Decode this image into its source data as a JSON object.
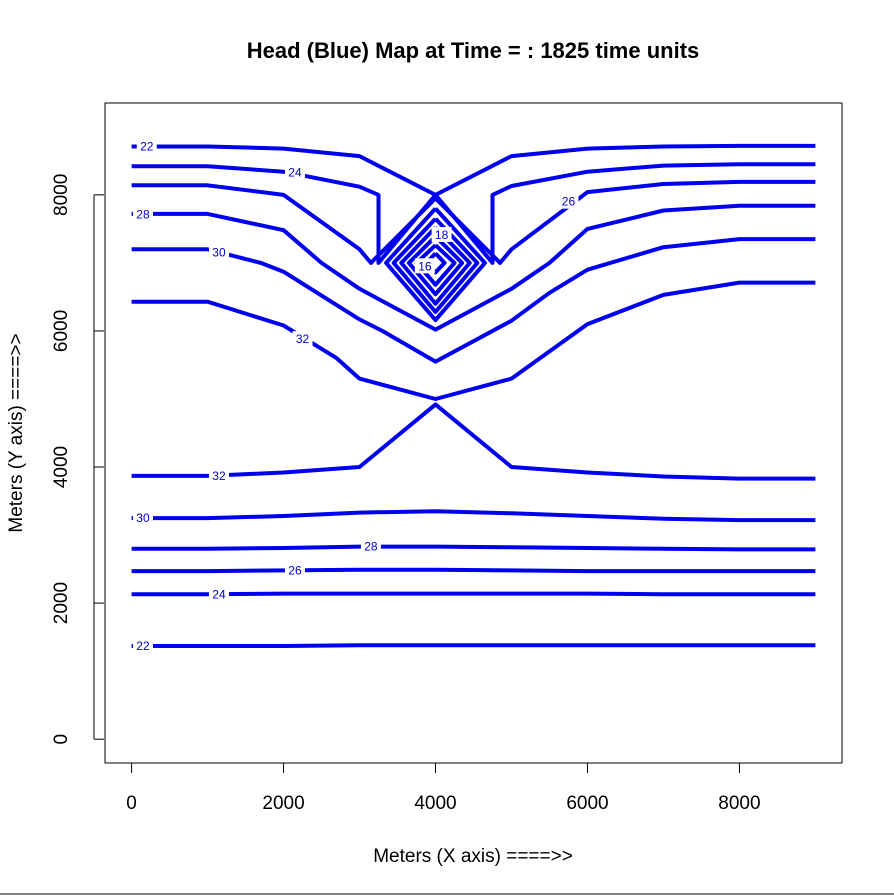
{
  "chart_data": {
    "type": "contour",
    "title": "Head (Blue) Map at Time = : 1825  time units",
    "xlabel": "Meters (X axis) ====>>",
    "ylabel": "Meters (Y axis) ====>>",
    "xlim": [
      -350,
      9350
    ],
    "ylim": [
      -350,
      9350
    ],
    "xticks": [
      0,
      2000,
      4000,
      6000,
      8000
    ],
    "yticks": [
      0,
      2000,
      4000,
      6000,
      8000
    ],
    "grid": false,
    "color": "#0000ee",
    "contours": [
      {
        "level": 22,
        "label": "22",
        "label_at": [
          200,
          8710
        ],
        "points": [
          [
            0,
            8710
          ],
          [
            1000,
            8710
          ],
          [
            2000,
            8680
          ],
          [
            3000,
            8570
          ],
          [
            4000,
            8000
          ],
          [
            5000,
            8570
          ],
          [
            6000,
            8680
          ],
          [
            7000,
            8710
          ],
          [
            8000,
            8720
          ],
          [
            9000,
            8720
          ]
        ]
      },
      {
        "level": 24,
        "label": "24",
        "label_at": [
          2150,
          8330
        ],
        "points": [
          [
            0,
            8420
          ],
          [
            1000,
            8420
          ],
          [
            2000,
            8340
          ],
          [
            3000,
            8120
          ],
          [
            3250,
            8000
          ],
          [
            3250,
            7000
          ],
          [
            4000,
            8000
          ],
          [
            4750,
            7000
          ],
          [
            4750,
            8000
          ],
          [
            5000,
            8130
          ],
          [
            6000,
            8340
          ],
          [
            7000,
            8430
          ],
          [
            8000,
            8450
          ],
          [
            9000,
            8450
          ]
        ]
      },
      {
        "level": 26,
        "label": "26",
        "label_at": [
          5750,
          7900
        ],
        "points": [
          [
            0,
            8140
          ],
          [
            1000,
            8140
          ],
          [
            2000,
            8000
          ],
          [
            3000,
            7200
          ],
          [
            3150,
            7000
          ],
          [
            4000,
            7950
          ],
          [
            4850,
            7000
          ],
          [
            5000,
            7200
          ],
          [
            6000,
            8040
          ],
          [
            7000,
            8160
          ],
          [
            8000,
            8190
          ],
          [
            9000,
            8190
          ]
        ]
      },
      {
        "level": 28,
        "label": "28",
        "label_at": [
          150,
          7710
        ],
        "points": [
          [
            0,
            7720
          ],
          [
            1000,
            7720
          ],
          [
            2000,
            7480
          ],
          [
            2500,
            7000
          ],
          [
            3000,
            6620
          ],
          [
            4000,
            6020
          ],
          [
            5000,
            6620
          ],
          [
            5500,
            7000
          ],
          [
            6000,
            7500
          ],
          [
            7000,
            7770
          ],
          [
            8000,
            7840
          ],
          [
            9000,
            7840
          ]
        ]
      },
      {
        "level": 30,
        "label": "30",
        "label_at": [
          1150,
          7150
        ],
        "points": [
          [
            0,
            7200
          ],
          [
            1000,
            7200
          ],
          [
            1700,
            7000
          ],
          [
            2000,
            6870
          ],
          [
            3000,
            6170
          ],
          [
            3300,
            6000
          ],
          [
            4000,
            5550
          ],
          [
            5000,
            6150
          ],
          [
            5500,
            6560
          ],
          [
            6000,
            6900
          ],
          [
            7000,
            7230
          ],
          [
            8000,
            7350
          ],
          [
            9000,
            7350
          ]
        ]
      },
      {
        "level": 32,
        "label": "32",
        "label_at": [
          2250,
          5880
        ],
        "points": [
          [
            0,
            6430
          ],
          [
            1000,
            6430
          ],
          [
            2000,
            6080
          ],
          [
            2700,
            5600
          ],
          [
            3000,
            5300
          ],
          [
            4000,
            5000
          ],
          [
            5000,
            5300
          ],
          [
            5500,
            5700
          ],
          [
            6000,
            6100
          ],
          [
            7000,
            6530
          ],
          [
            8000,
            6710
          ],
          [
            9000,
            6710
          ]
        ]
      },
      {
        "level": 32,
        "label": "32",
        "label_at": [
          1150,
          3870
        ],
        "points": [
          [
            0,
            3870
          ],
          [
            1000,
            3870
          ],
          [
            2000,
            3920
          ],
          [
            3000,
            4000
          ],
          [
            4000,
            4920
          ],
          [
            5000,
            4000
          ],
          [
            6000,
            3920
          ],
          [
            7000,
            3860
          ],
          [
            8000,
            3830
          ],
          [
            9000,
            3830
          ]
        ]
      },
      {
        "level": 30,
        "label": "30",
        "label_at": [
          150,
          3250
        ],
        "points": [
          [
            0,
            3250
          ],
          [
            1000,
            3250
          ],
          [
            2000,
            3280
          ],
          [
            3000,
            3330
          ],
          [
            4000,
            3350
          ],
          [
            5000,
            3320
          ],
          [
            6000,
            3280
          ],
          [
            7000,
            3240
          ],
          [
            8000,
            3220
          ],
          [
            9000,
            3220
          ]
        ]
      },
      {
        "level": 28,
        "label": "28",
        "label_at": [
          3150,
          2830
        ],
        "points": [
          [
            0,
            2800
          ],
          [
            1000,
            2800
          ],
          [
            2000,
            2810
          ],
          [
            3000,
            2830
          ],
          [
            4000,
            2830
          ],
          [
            5000,
            2820
          ],
          [
            6000,
            2810
          ],
          [
            7000,
            2800
          ],
          [
            8000,
            2790
          ],
          [
            9000,
            2790
          ]
        ]
      },
      {
        "level": 26,
        "label": "26",
        "label_at": [
          2150,
          2480
        ],
        "points": [
          [
            0,
            2470
          ],
          [
            1000,
            2470
          ],
          [
            2000,
            2480
          ],
          [
            3000,
            2490
          ],
          [
            4000,
            2490
          ],
          [
            5000,
            2480
          ],
          [
            6000,
            2470
          ],
          [
            7000,
            2470
          ],
          [
            8000,
            2470
          ],
          [
            9000,
            2470
          ]
        ]
      },
      {
        "level": 24,
        "label": "24",
        "label_at": [
          1150,
          2130
        ],
        "points": [
          [
            0,
            2130
          ],
          [
            1000,
            2130
          ],
          [
            2000,
            2140
          ],
          [
            3000,
            2140
          ],
          [
            4000,
            2140
          ],
          [
            5000,
            2140
          ],
          [
            6000,
            2140
          ],
          [
            7000,
            2130
          ],
          [
            8000,
            2130
          ],
          [
            9000,
            2130
          ]
        ]
      },
      {
        "level": 22,
        "label": "22",
        "label_at": [
          150,
          1370
        ],
        "points": [
          [
            0,
            1370
          ],
          [
            1000,
            1370
          ],
          [
            2000,
            1370
          ],
          [
            3000,
            1380
          ],
          [
            4000,
            1380
          ],
          [
            5000,
            1380
          ],
          [
            6000,
            1380
          ],
          [
            7000,
            1380
          ],
          [
            8000,
            1380
          ],
          [
            9000,
            1380
          ]
        ]
      },
      {
        "level": 20,
        "label": "",
        "label_at": null,
        "points": [
          [
            4000,
            7800
          ],
          [
            4650,
            7000
          ],
          [
            4000,
            6160
          ],
          [
            3350,
            7000
          ],
          [
            4000,
            7800
          ]
        ]
      },
      {
        "level": 19,
        "label": "",
        "label_at": null,
        "points": [
          [
            4000,
            7650
          ],
          [
            4550,
            7000
          ],
          [
            4000,
            6280
          ],
          [
            3450,
            7000
          ],
          [
            4000,
            7650
          ]
        ]
      },
      {
        "level": 18,
        "label": "18",
        "label_at": [
          4080,
          7410
        ],
        "points": [
          [
            4000,
            7520
          ],
          [
            4450,
            7000
          ],
          [
            4000,
            6400
          ],
          [
            3550,
            7000
          ],
          [
            4000,
            7520
          ]
        ]
      },
      {
        "level": 17,
        "label": "",
        "label_at": null,
        "points": [
          [
            4000,
            7390
          ],
          [
            4350,
            7000
          ],
          [
            4000,
            6540
          ],
          [
            3650,
            7000
          ],
          [
            4000,
            7390
          ]
        ]
      },
      {
        "level": 16,
        "label": "16",
        "label_at": [
          3860,
          6950
        ],
        "points": [
          [
            4000,
            7260
          ],
          [
            4250,
            7000
          ],
          [
            4000,
            6680
          ],
          [
            3750,
            7000
          ],
          [
            4000,
            7260
          ]
        ]
      },
      {
        "level": 15,
        "label": "",
        "label_at": null,
        "points": [
          [
            4000,
            7140
          ],
          [
            4120,
            7000
          ],
          [
            4000,
            6860
          ],
          [
            3880,
            7000
          ],
          [
            4000,
            7140
          ]
        ]
      }
    ]
  }
}
